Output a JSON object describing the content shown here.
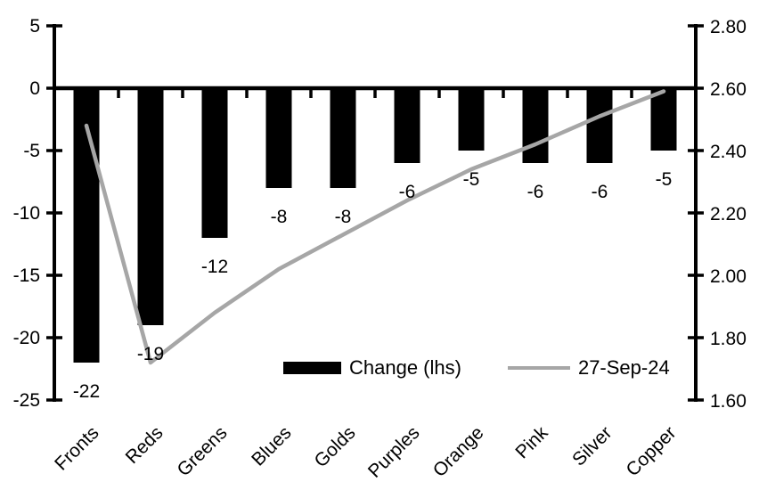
{
  "chart_data": {
    "type": "combo-bar-line",
    "categories": [
      "Fronts",
      "Reds",
      "Greens",
      "Blues",
      "Golds",
      "Purples",
      "Orange",
      "Pink",
      "Silver",
      "Copper"
    ],
    "series": [
      {
        "name": "Change (lhs)",
        "type": "bar",
        "axis": "left",
        "color": "#000000",
        "values": [
          -22,
          -19,
          -12,
          -8,
          -8,
          -6,
          -5,
          -6,
          -6,
          -5
        ]
      },
      {
        "name": "27-Sep-24",
        "type": "line",
        "axis": "right",
        "color": "#a6a6a6",
        "values": [
          2.48,
          1.72,
          1.88,
          2.02,
          2.13,
          2.24,
          2.34,
          2.42,
          2.51,
          2.59
        ]
      }
    ],
    "data_labels": [
      "-22",
      "-19",
      "-12",
      "-8",
      "-8",
      "-6",
      "-5",
      "-6",
      "-6",
      "-5"
    ],
    "left_axis": {
      "tick_labels": [
        "5",
        "0",
        "-5",
        "-10",
        "-15",
        "-20",
        "-25"
      ],
      "min": -25,
      "max": 5,
      "step": 5
    },
    "right_axis": {
      "tick_labels": [
        "2.80",
        "2.60",
        "2.40",
        "2.20",
        "2.00",
        "1.80",
        "1.60"
      ],
      "min": 1.6,
      "max": 2.8,
      "step": 0.2
    },
    "legend": [
      {
        "label": "Change (lhs)",
        "swatch": "bar",
        "color": "#000000"
      },
      {
        "label": "27-Sep-24",
        "swatch": "line",
        "color": "#a6a6a6"
      }
    ],
    "legend_position": "inside-bottom-center",
    "grid": false,
    "background": "#ffffff",
    "axis_color": "#000000",
    "text_color": "#000000"
  }
}
